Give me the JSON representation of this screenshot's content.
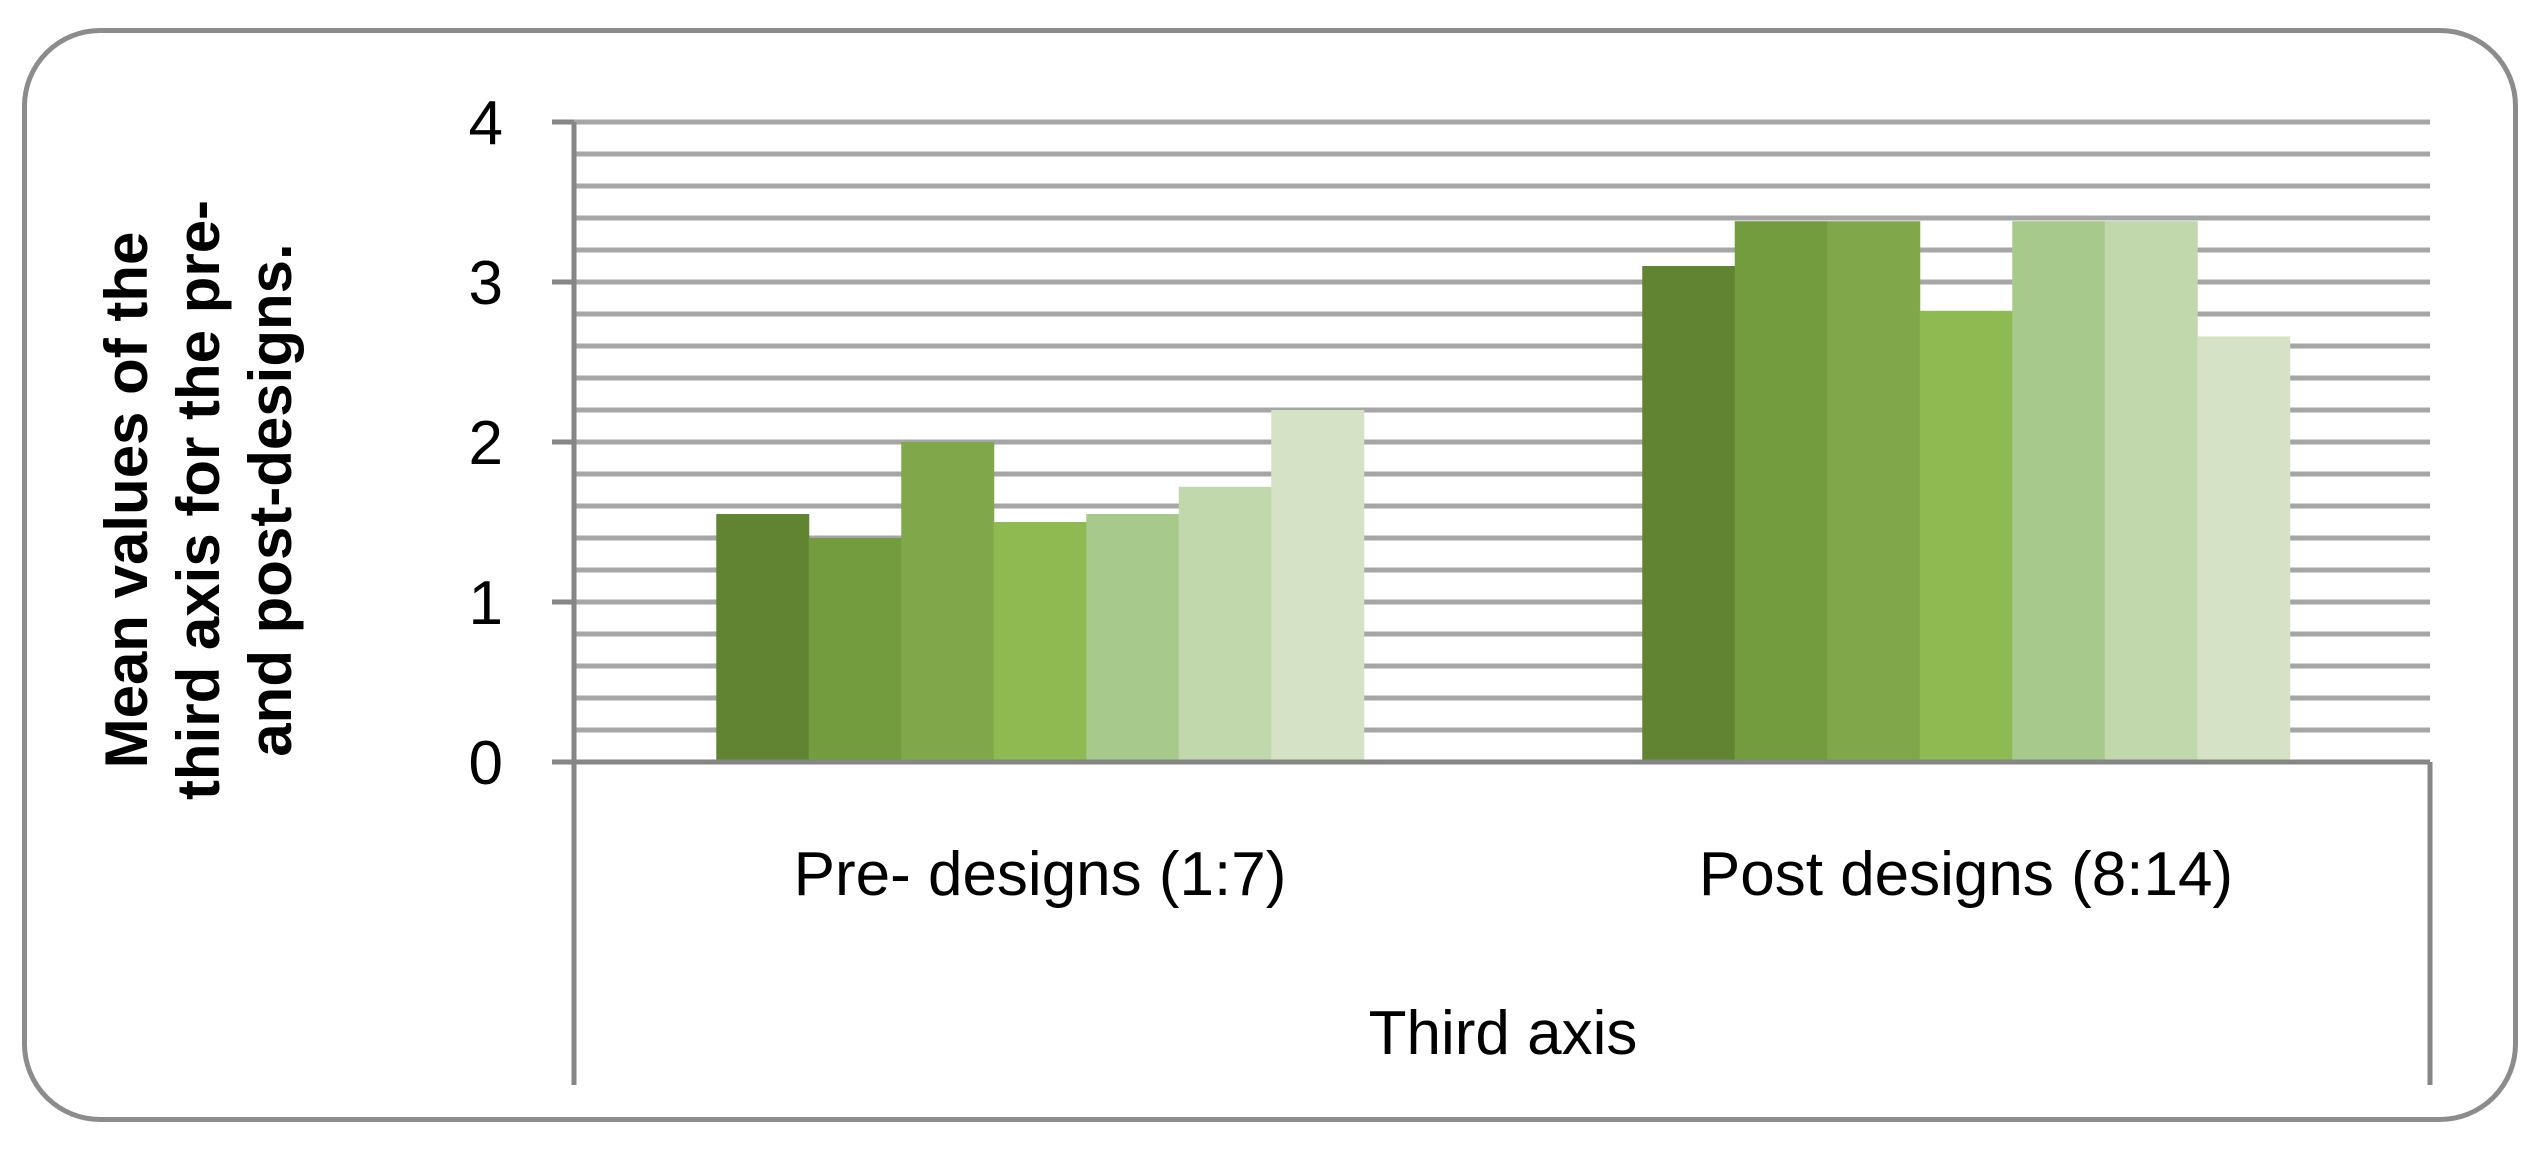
{
  "chart_data": {
    "type": "bar",
    "title": "",
    "xlabel": "Third axis",
    "ylabel_lines": [
      "Mean values of the",
      "third axis for the pre-",
      "and post-designs."
    ],
    "categories": [
      "Pre- designs (1:7)",
      "Post designs (8:14)"
    ],
    "series": [
      {
        "values": [
          1.55,
          3.1
        ],
        "color": "#618433"
      },
      {
        "values": [
          1.4,
          3.38
        ],
        "color": "#739c3f"
      },
      {
        "values": [
          2.0,
          3.38
        ],
        "color": "#80a84b"
      },
      {
        "values": [
          1.5,
          2.82
        ],
        "color": "#8dbb52"
      },
      {
        "values": [
          1.55,
          3.38
        ],
        "color": "#a7c98b"
      },
      {
        "values": [
          1.72,
          3.38
        ],
        "color": "#c1d7ac"
      },
      {
        "values": [
          2.2,
          2.66
        ],
        "color": "#d5e2c6"
      }
    ],
    "ylim": [
      0,
      4
    ],
    "yticks": [
      0,
      1,
      2,
      3,
      4
    ],
    "grid": true,
    "gridline_color": "#a6a6a6",
    "legend": "none"
  }
}
